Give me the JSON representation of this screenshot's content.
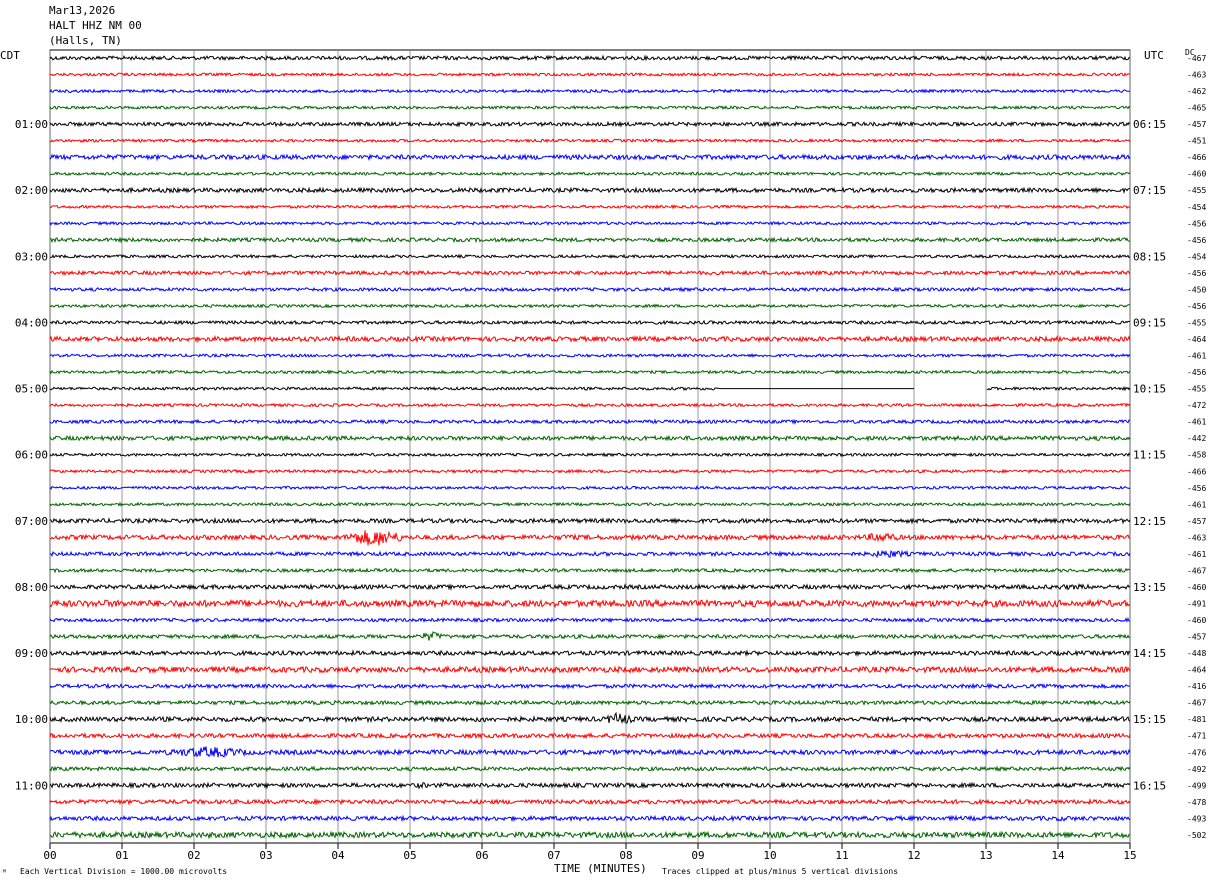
{
  "header": {
    "date": "Mar13,2026",
    "station": "HALT HHZ NM 00",
    "location": "(Halls, TN)"
  },
  "left_axis_title": "CDT",
  "right_axis_title": "UTC",
  "dc_label": "DC",
  "footer": {
    "vertical_division": "Each Vertical Division = 1000.00 microvolts",
    "xlabel": "TIME (MINUTES)",
    "clip_note": "Traces clipped at plus/minus 5 vertical divisions",
    "corner_mark": "ᴹ"
  },
  "colors": {
    "trace_cycle": [
      "#000000",
      "#ff0000",
      "#0000ff",
      "#006400"
    ],
    "grid": "#808080",
    "background": "#ffffff"
  },
  "chart_data": {
    "type": "line",
    "title": "HALT HHZ NM 00",
    "xlabel": "TIME (MINUTES)",
    "ylabel": "",
    "xlim": [
      0,
      15
    ],
    "x_ticks": [
      "00",
      "01",
      "02",
      "03",
      "04",
      "05",
      "06",
      "07",
      "08",
      "09",
      "10",
      "11",
      "12",
      "13",
      "14",
      "15"
    ],
    "rows_per_hour": 4,
    "local_hour_labels": [
      "01:00",
      "02:00",
      "03:00",
      "04:00",
      "05:00",
      "06:00",
      "07:00",
      "08:00",
      "09:00",
      "10:00",
      "11:00"
    ],
    "utc_hour_labels": [
      "06:15",
      "07:15",
      "08:15",
      "09:15",
      "10:15",
      "11:15",
      "12:15",
      "13:15",
      "14:15",
      "15:15",
      "16:15"
    ],
    "dc_offsets": [
      -467,
      -463,
      -462,
      -465,
      -457,
      -451,
      -466,
      -460,
      -455,
      -454,
      -456,
      -456,
      -454,
      -456,
      -450,
      -456,
      -455,
      -464,
      -461,
      -456,
      -455,
      -472,
      -461,
      -442,
      -458,
      -466,
      -456,
      -461,
      -457,
      -463,
      -461,
      -467,
      -460,
      -491,
      -460,
      -457,
      -448,
      -464,
      -416,
      -467,
      -481,
      -471,
      -476,
      -492,
      -499,
      -478,
      -493,
      -502
    ],
    "noise_amplitude_divisions": [
      0.8,
      0.6,
      0.6,
      0.6,
      0.8,
      0.6,
      1.0,
      0.6,
      0.9,
      0.6,
      0.6,
      0.8,
      0.6,
      0.8,
      0.7,
      0.6,
      0.7,
      1.0,
      0.6,
      0.6,
      0.6,
      0.6,
      0.7,
      0.9,
      0.6,
      0.6,
      0.6,
      0.6,
      0.9,
      1.0,
      0.8,
      0.7,
      0.9,
      1.4,
      0.7,
      0.8,
      0.9,
      1.2,
      0.8,
      0.8,
      1.0,
      0.9,
      1.0,
      0.8,
      0.9,
      0.9,
      0.9,
      1.2
    ],
    "events": [
      {
        "row": 6,
        "start_min": 4.0,
        "end_min": 8.8,
        "amplitude": 0.9
      },
      {
        "row": 8,
        "start_min": 3.0,
        "end_min": 8.8,
        "amplitude": 1.0
      },
      {
        "row": 11,
        "start_min": 2.8,
        "end_min": 6.5,
        "amplitude": 0.8
      },
      {
        "row": 13,
        "start_min": 11.0,
        "end_min": 15.0,
        "amplitude": 0.9
      },
      {
        "row": 17,
        "start_min": 2.5,
        "end_min": 6.0,
        "amplitude": 0.8
      },
      {
        "row": 29,
        "start_min": 4.1,
        "end_min": 4.9,
        "amplitude": 4.0
      },
      {
        "row": 29,
        "start_min": 7.0,
        "end_min": 7.4,
        "amplitude": 1.5
      },
      {
        "row": 29,
        "start_min": 11.3,
        "end_min": 11.8,
        "amplitude": 2.5
      },
      {
        "row": 30,
        "start_min": 11.3,
        "end_min": 12.0,
        "amplitude": 1.8
      },
      {
        "row": 32,
        "start_min": 13.4,
        "end_min": 15.0,
        "amplitude": 1.2
      },
      {
        "row": 33,
        "start_min": 0.0,
        "end_min": 1.5,
        "amplitude": 1.6
      },
      {
        "row": 35,
        "start_min": 5.1,
        "end_min": 5.5,
        "amplitude": 2.2
      },
      {
        "row": 37,
        "start_min": 3.8,
        "end_min": 14.2,
        "amplitude": 1.0
      },
      {
        "row": 40,
        "start_min": 7.7,
        "end_min": 8.1,
        "amplitude": 3.0
      },
      {
        "row": 40,
        "start_min": 5.8,
        "end_min": 6.2,
        "amplitude": 1.4
      },
      {
        "row": 42,
        "start_min": 1.6,
        "end_min": 2.8,
        "amplitude": 2.6
      },
      {
        "row": 44,
        "start_min": 5.0,
        "end_min": 5.3,
        "amplitude": 1.4
      },
      {
        "row": 46,
        "start_min": 13.8,
        "end_min": 14.4,
        "amplitude": 1.2
      },
      {
        "row": 47,
        "start_min": 1.8,
        "end_min": 2.6,
        "amplitude": 1.2
      },
      {
        "row": 47,
        "start_min": 14.5,
        "end_min": 15.0,
        "amplitude": 1.4
      }
    ],
    "data_gaps": [
      {
        "row": 20,
        "start_min": 9.3,
        "end_min": 13.0,
        "flat_until": 12.0
      }
    ]
  }
}
